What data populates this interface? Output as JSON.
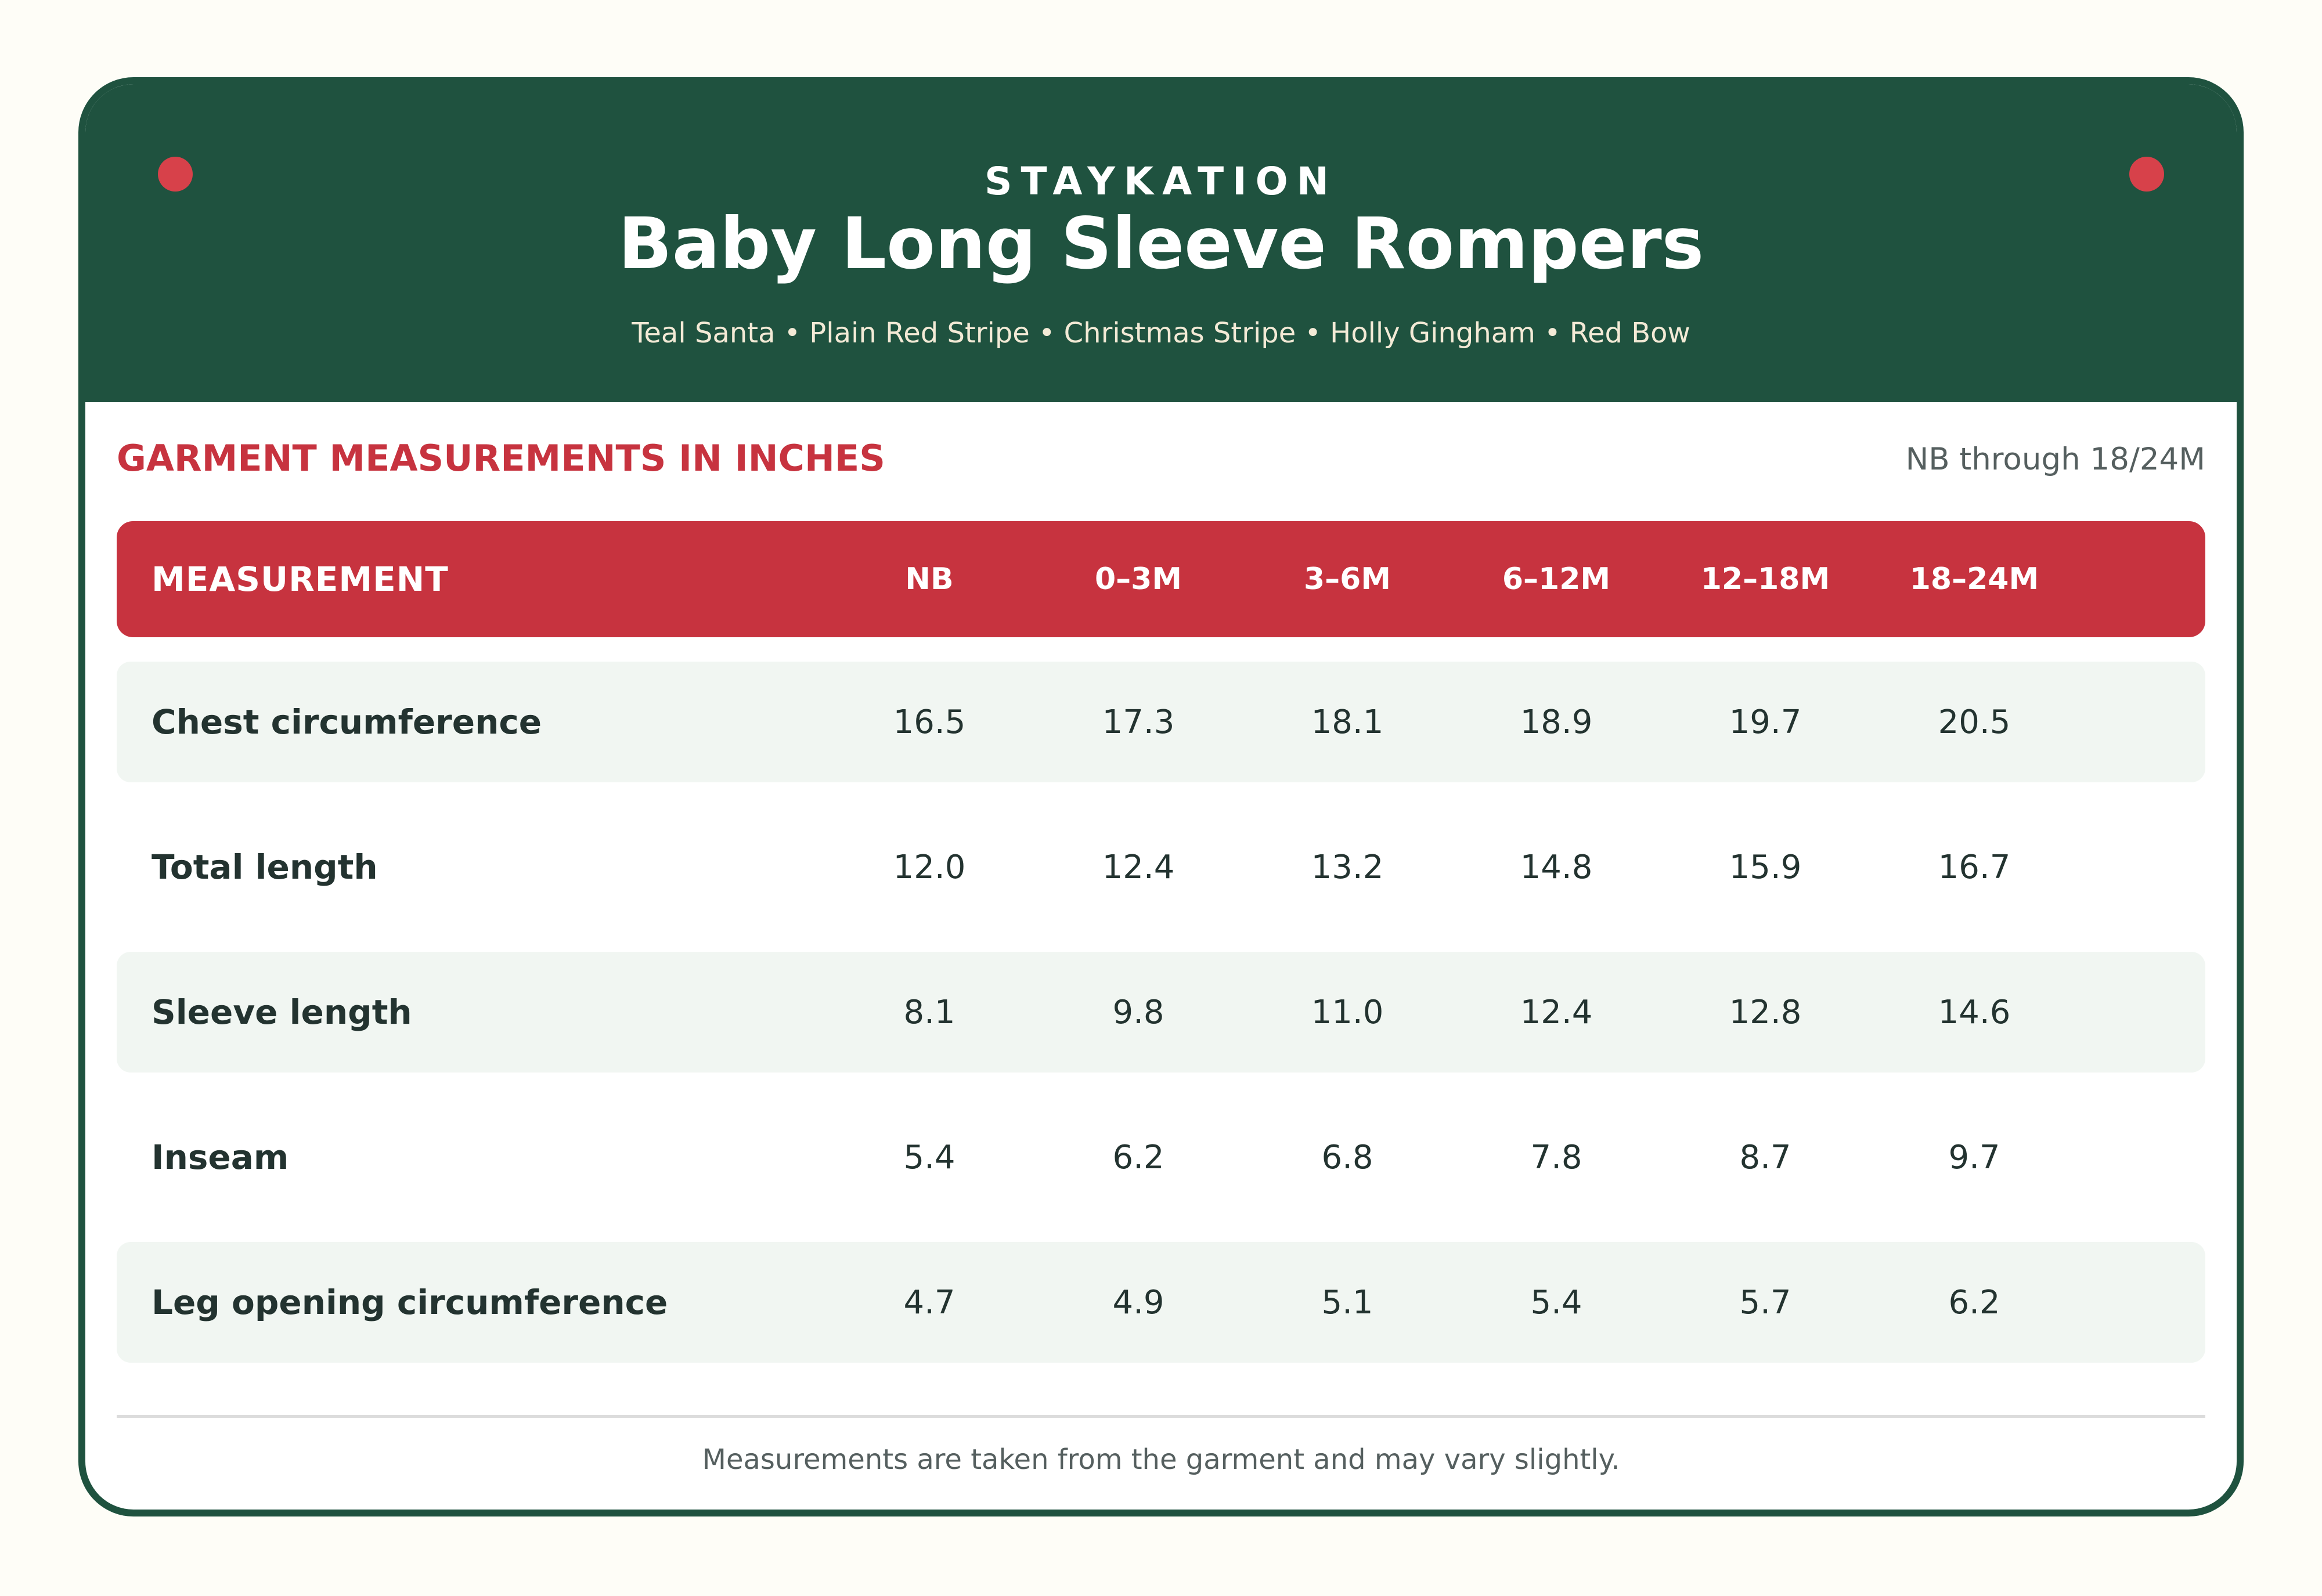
{
  "brand": "STAYKATION",
  "title": "Baby Long Sleeve Rompers",
  "subtitle": "Teal Santa • Plain Red Stripe • Christmas Stripe • Holly Gingham • Red Bow",
  "section_heading": "GARMENT MEASUREMENTS IN INCHES",
  "size_range": "NB through 18/24M",
  "table": {
    "header": {
      "label": "MEASUREMENT",
      "sizes": [
        "NB",
        "0–3M",
        "3–6M",
        "6–12M",
        "12–18M",
        "18–24M"
      ]
    },
    "rows": [
      {
        "label": "Chest circumference",
        "values": [
          "16.5",
          "17.3",
          "18.1",
          "18.9",
          "19.7",
          "20.5"
        ]
      },
      {
        "label": "Total length",
        "values": [
          "12.0",
          "12.4",
          "13.2",
          "14.8",
          "15.9",
          "16.7"
        ]
      },
      {
        "label": "Sleeve length",
        "values": [
          "8.1",
          "9.8",
          "11.0",
          "12.4",
          "12.8",
          "14.6"
        ]
      },
      {
        "label": "Inseam",
        "values": [
          "5.4",
          "6.2",
          "6.8",
          "7.8",
          "8.7",
          "9.7"
        ]
      },
      {
        "label": "Leg opening circumference",
        "values": [
          "4.7",
          "4.9",
          "5.1",
          "5.4",
          "5.7",
          "6.2"
        ]
      }
    ]
  },
  "footnote": "Measurements are taken from the garment and may vary slightly.",
  "colors": {
    "header_green": "#1f523f",
    "accent_red": "#c7333f",
    "dot_red": "#d7414a",
    "row_shade": "#f1f6f2"
  }
}
